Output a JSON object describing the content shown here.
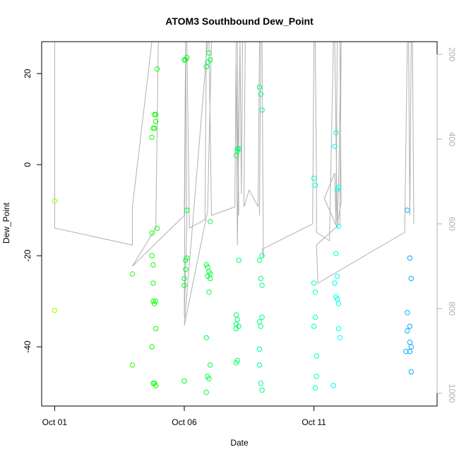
{
  "chart_data": {
    "type": "scatter",
    "title": "ATOM3 Southbound Dew_Point",
    "xlabel": "Date",
    "ylabel": "Dew_Point",
    "x_unit": "days",
    "xlim": [
      -0.5,
      14.75
    ],
    "ylim": [
      -53,
      27
    ],
    "x_ticks": [
      {
        "value": 0,
        "label": "Oct 01"
      },
      {
        "value": 5,
        "label": "Oct 06"
      },
      {
        "value": 10,
        "label": "Oct 11"
      }
    ],
    "y_ticks": [
      {
        "value": 20,
        "label": "20"
      },
      {
        "value": 0,
        "label": "0"
      },
      {
        "value": -20,
        "label": "-20"
      },
      {
        "value": -40,
        "label": "-40"
      }
    ],
    "right_axis": {
      "color": "#b0b0b0",
      "ylim": [
        1030,
        170
      ],
      "ticks": [
        {
          "value": 200,
          "label": "200"
        },
        {
          "value": 400,
          "label": "400"
        },
        {
          "value": 600,
          "label": "600"
        },
        {
          "value": 800,
          "label": "800"
        },
        {
          "value": 1000,
          "label": "1000"
        }
      ]
    },
    "pressure_line": [
      [
        0.0,
        170
      ],
      [
        0.0,
        610
      ],
      [
        3.0,
        650
      ],
      [
        3.0,
        560
      ],
      [
        3.75,
        170
      ],
      [
        3.8,
        170
      ],
      [
        3.85,
        170
      ],
      [
        3.9,
        170
      ],
      [
        4.0,
        170
      ],
      [
        3.9,
        610
      ],
      [
        3.0,
        700
      ],
      [
        5.0,
        580
      ],
      [
        5.05,
        170
      ],
      [
        5.1,
        600
      ],
      [
        5.0,
        820
      ],
      [
        5.05,
        170
      ],
      [
        5.1,
        170
      ],
      [
        5.2,
        610
      ],
      [
        5.8,
        590
      ],
      [
        5.85,
        170
      ],
      [
        5.9,
        170
      ],
      [
        6.0,
        170
      ],
      [
        6.05,
        170
      ],
      [
        5.9,
        570
      ],
      [
        5.0,
        840
      ],
      [
        5.9,
        170
      ],
      [
        5.95,
        170
      ],
      [
        6.05,
        580
      ],
      [
        6.95,
        560
      ],
      [
        7.0,
        170
      ],
      [
        7.05,
        170
      ],
      [
        7.1,
        580
      ],
      [
        7.0,
        220
      ],
      [
        7.05,
        650
      ],
      [
        7.15,
        170
      ],
      [
        7.2,
        530
      ],
      [
        7.25,
        170
      ],
      [
        7.3,
        170
      ],
      [
        7.35,
        170
      ],
      [
        7.3,
        560
      ],
      [
        7.5,
        520
      ],
      [
        7.85,
        560
      ],
      [
        7.9,
        170
      ],
      [
        7.95,
        170
      ],
      [
        7.9,
        580
      ],
      [
        7.95,
        170
      ],
      [
        8.0,
        170
      ],
      [
        8.05,
        680
      ],
      [
        8.0,
        660
      ],
      [
        9.95,
        600
      ],
      [
        10.0,
        170
      ],
      [
        10.05,
        170
      ],
      [
        10.1,
        490
      ],
      [
        10.1,
        620
      ],
      [
        10.6,
        640
      ],
      [
        10.75,
        170
      ],
      [
        10.8,
        170
      ],
      [
        10.9,
        610
      ],
      [
        10.4,
        540
      ],
      [
        10.8,
        480
      ],
      [
        10.85,
        600
      ],
      [
        10.9,
        170
      ],
      [
        11.0,
        170
      ],
      [
        11.05,
        550
      ],
      [
        10.9,
        600
      ],
      [
        10.95,
        500
      ],
      [
        11.05,
        170
      ],
      [
        11.0,
        600
      ],
      [
        10.1,
        650
      ],
      [
        10.15,
        740
      ],
      [
        13.5,
        620
      ],
      [
        13.6,
        170
      ],
      [
        13.65,
        170
      ],
      [
        13.7,
        580
      ],
      [
        13.75,
        170
      ],
      [
        13.8,
        170
      ],
      [
        13.85,
        600
      ]
    ],
    "points": [
      [
        0,
        -8
      ],
      [
        0,
        -32
      ],
      [
        3.0,
        -24
      ],
      [
        3.0,
        -44
      ],
      [
        3.75,
        -15
      ],
      [
        3.75,
        -20
      ],
      [
        3.8,
        -22
      ],
      [
        3.8,
        -26
      ],
      [
        3.8,
        -30
      ],
      [
        3.85,
        -30.5
      ],
      [
        3.9,
        -30
      ],
      [
        3.9,
        -36
      ],
      [
        3.75,
        -40
      ],
      [
        3.8,
        -48
      ],
      [
        3.85,
        -48
      ],
      [
        3.9,
        -48.5
      ],
      [
        3.75,
        6
      ],
      [
        3.8,
        8
      ],
      [
        3.85,
        8
      ],
      [
        3.9,
        9.5
      ],
      [
        3.85,
        11
      ],
      [
        3.9,
        11
      ],
      [
        3.95,
        21
      ],
      [
        3.95,
        -14
      ],
      [
        5.0,
        23
      ],
      [
        5.05,
        23
      ],
      [
        5.1,
        23.5
      ],
      [
        5.1,
        -10
      ],
      [
        5.05,
        -21
      ],
      [
        5.1,
        -20.5
      ],
      [
        5.05,
        -23
      ],
      [
        5.0,
        -25
      ],
      [
        5.0,
        -26.5
      ],
      [
        5.0,
        -47.5
      ],
      [
        5.85,
        21.5
      ],
      [
        5.9,
        22.5
      ],
      [
        5.95,
        24.5
      ],
      [
        6.0,
        23
      ],
      [
        6.0,
        -12.5
      ],
      [
        5.85,
        -22
      ],
      [
        5.9,
        -22.5
      ],
      [
        5.95,
        -23.5
      ],
      [
        6.0,
        -24
      ],
      [
        5.9,
        -24.5
      ],
      [
        6.0,
        -25
      ],
      [
        5.95,
        -28
      ],
      [
        5.85,
        -38
      ],
      [
        6.0,
        -44
      ],
      [
        5.9,
        -46.5
      ],
      [
        5.95,
        -47
      ],
      [
        5.85,
        -50
      ],
      [
        7.0,
        2
      ],
      [
        7.05,
        3
      ],
      [
        7.1,
        3.5
      ],
      [
        7.05,
        3.5
      ],
      [
        7.1,
        -21
      ],
      [
        7.0,
        -33
      ],
      [
        7.05,
        -34
      ],
      [
        7.1,
        -35.5
      ],
      [
        7.0,
        -35
      ],
      [
        7.0,
        -36
      ],
      [
        7.05,
        -43
      ],
      [
        7.0,
        -43.5
      ],
      [
        7.9,
        17
      ],
      [
        7.95,
        15.5
      ],
      [
        8.0,
        12
      ],
      [
        8.0,
        -20
      ],
      [
        7.9,
        -21
      ],
      [
        7.95,
        -25
      ],
      [
        8.0,
        -26.5
      ],
      [
        7.9,
        -34.5
      ],
      [
        8.0,
        -33.5
      ],
      [
        7.95,
        -35.5
      ],
      [
        7.9,
        -40.5
      ],
      [
        7.9,
        -44
      ],
      [
        7.95,
        -48
      ],
      [
        8.0,
        -49.5
      ],
      [
        10.0,
        -3
      ],
      [
        10.05,
        -4.5
      ],
      [
        10.0,
        -26
      ],
      [
        10.05,
        -28
      ],
      [
        10.05,
        -33.5
      ],
      [
        10.0,
        -35.5
      ],
      [
        10.1,
        -42
      ],
      [
        10.1,
        -46.5
      ],
      [
        10.05,
        -49
      ],
      [
        10.8,
        4
      ],
      [
        10.85,
        7
      ],
      [
        10.9,
        -5.5
      ],
      [
        10.95,
        -5
      ],
      [
        10.95,
        -13.5
      ],
      [
        10.85,
        -19.5
      ],
      [
        10.9,
        -24.5
      ],
      [
        10.8,
        -26
      ],
      [
        10.85,
        -29
      ],
      [
        10.9,
        -29.5
      ],
      [
        10.95,
        -30.5
      ],
      [
        10.95,
        -36
      ],
      [
        11.0,
        -38
      ],
      [
        10.75,
        -48.5
      ],
      [
        13.6,
        -10
      ],
      [
        13.7,
        -20.5
      ],
      [
        13.75,
        -25
      ],
      [
        13.6,
        -32.5
      ],
      [
        13.7,
        -35.5
      ],
      [
        13.6,
        -36.5
      ],
      [
        13.7,
        -39
      ],
      [
        13.75,
        -40
      ],
      [
        13.55,
        -41
      ],
      [
        13.7,
        -41
      ],
      [
        13.75,
        -45.5
      ]
    ]
  }
}
